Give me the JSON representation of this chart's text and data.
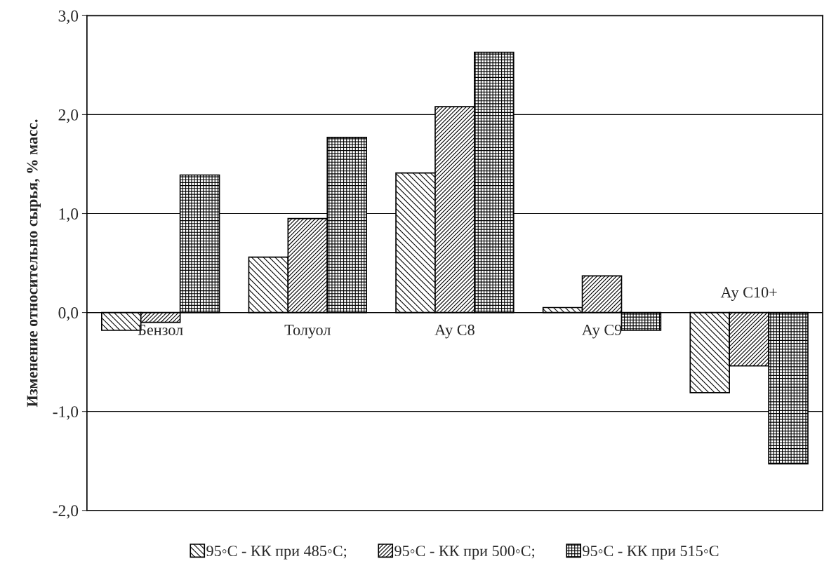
{
  "chart_data": {
    "type": "bar",
    "ylabel": "Изменение относительно сырья, % масс.",
    "categories": [
      "Бензол",
      "Толуол",
      "Ау С8",
      "Ау С9",
      "Ау С10+"
    ],
    "series": [
      {
        "name": "95◦C - КК при 485◦C;",
        "color": "#000000",
        "values": [
          -0.18,
          0.56,
          1.41,
          0.05,
          -0.81
        ]
      },
      {
        "name": "95◦C - КК при 500◦C;",
        "color": "#000000",
        "values": [
          -0.1,
          0.95,
          2.08,
          0.37,
          -0.54
        ]
      },
      {
        "name": "95◦C - КК при 515◦C",
        "color": "#000000",
        "values": [
          1.39,
          1.77,
          2.63,
          -0.18,
          -1.53
        ]
      }
    ],
    "ylim": [
      -2,
      3
    ],
    "yticks": [
      {
        "value": -2,
        "label": "-2,0"
      },
      {
        "value": -1,
        "label": "-1,0"
      },
      {
        "value": 0,
        "label": "0,0"
      },
      {
        "value": 1,
        "label": "1,0"
      },
      {
        "value": 2,
        "label": "2,0"
      },
      {
        "value": 3,
        "label": "3,0"
      }
    ],
    "grid": "y",
    "legend": "bottom"
  }
}
